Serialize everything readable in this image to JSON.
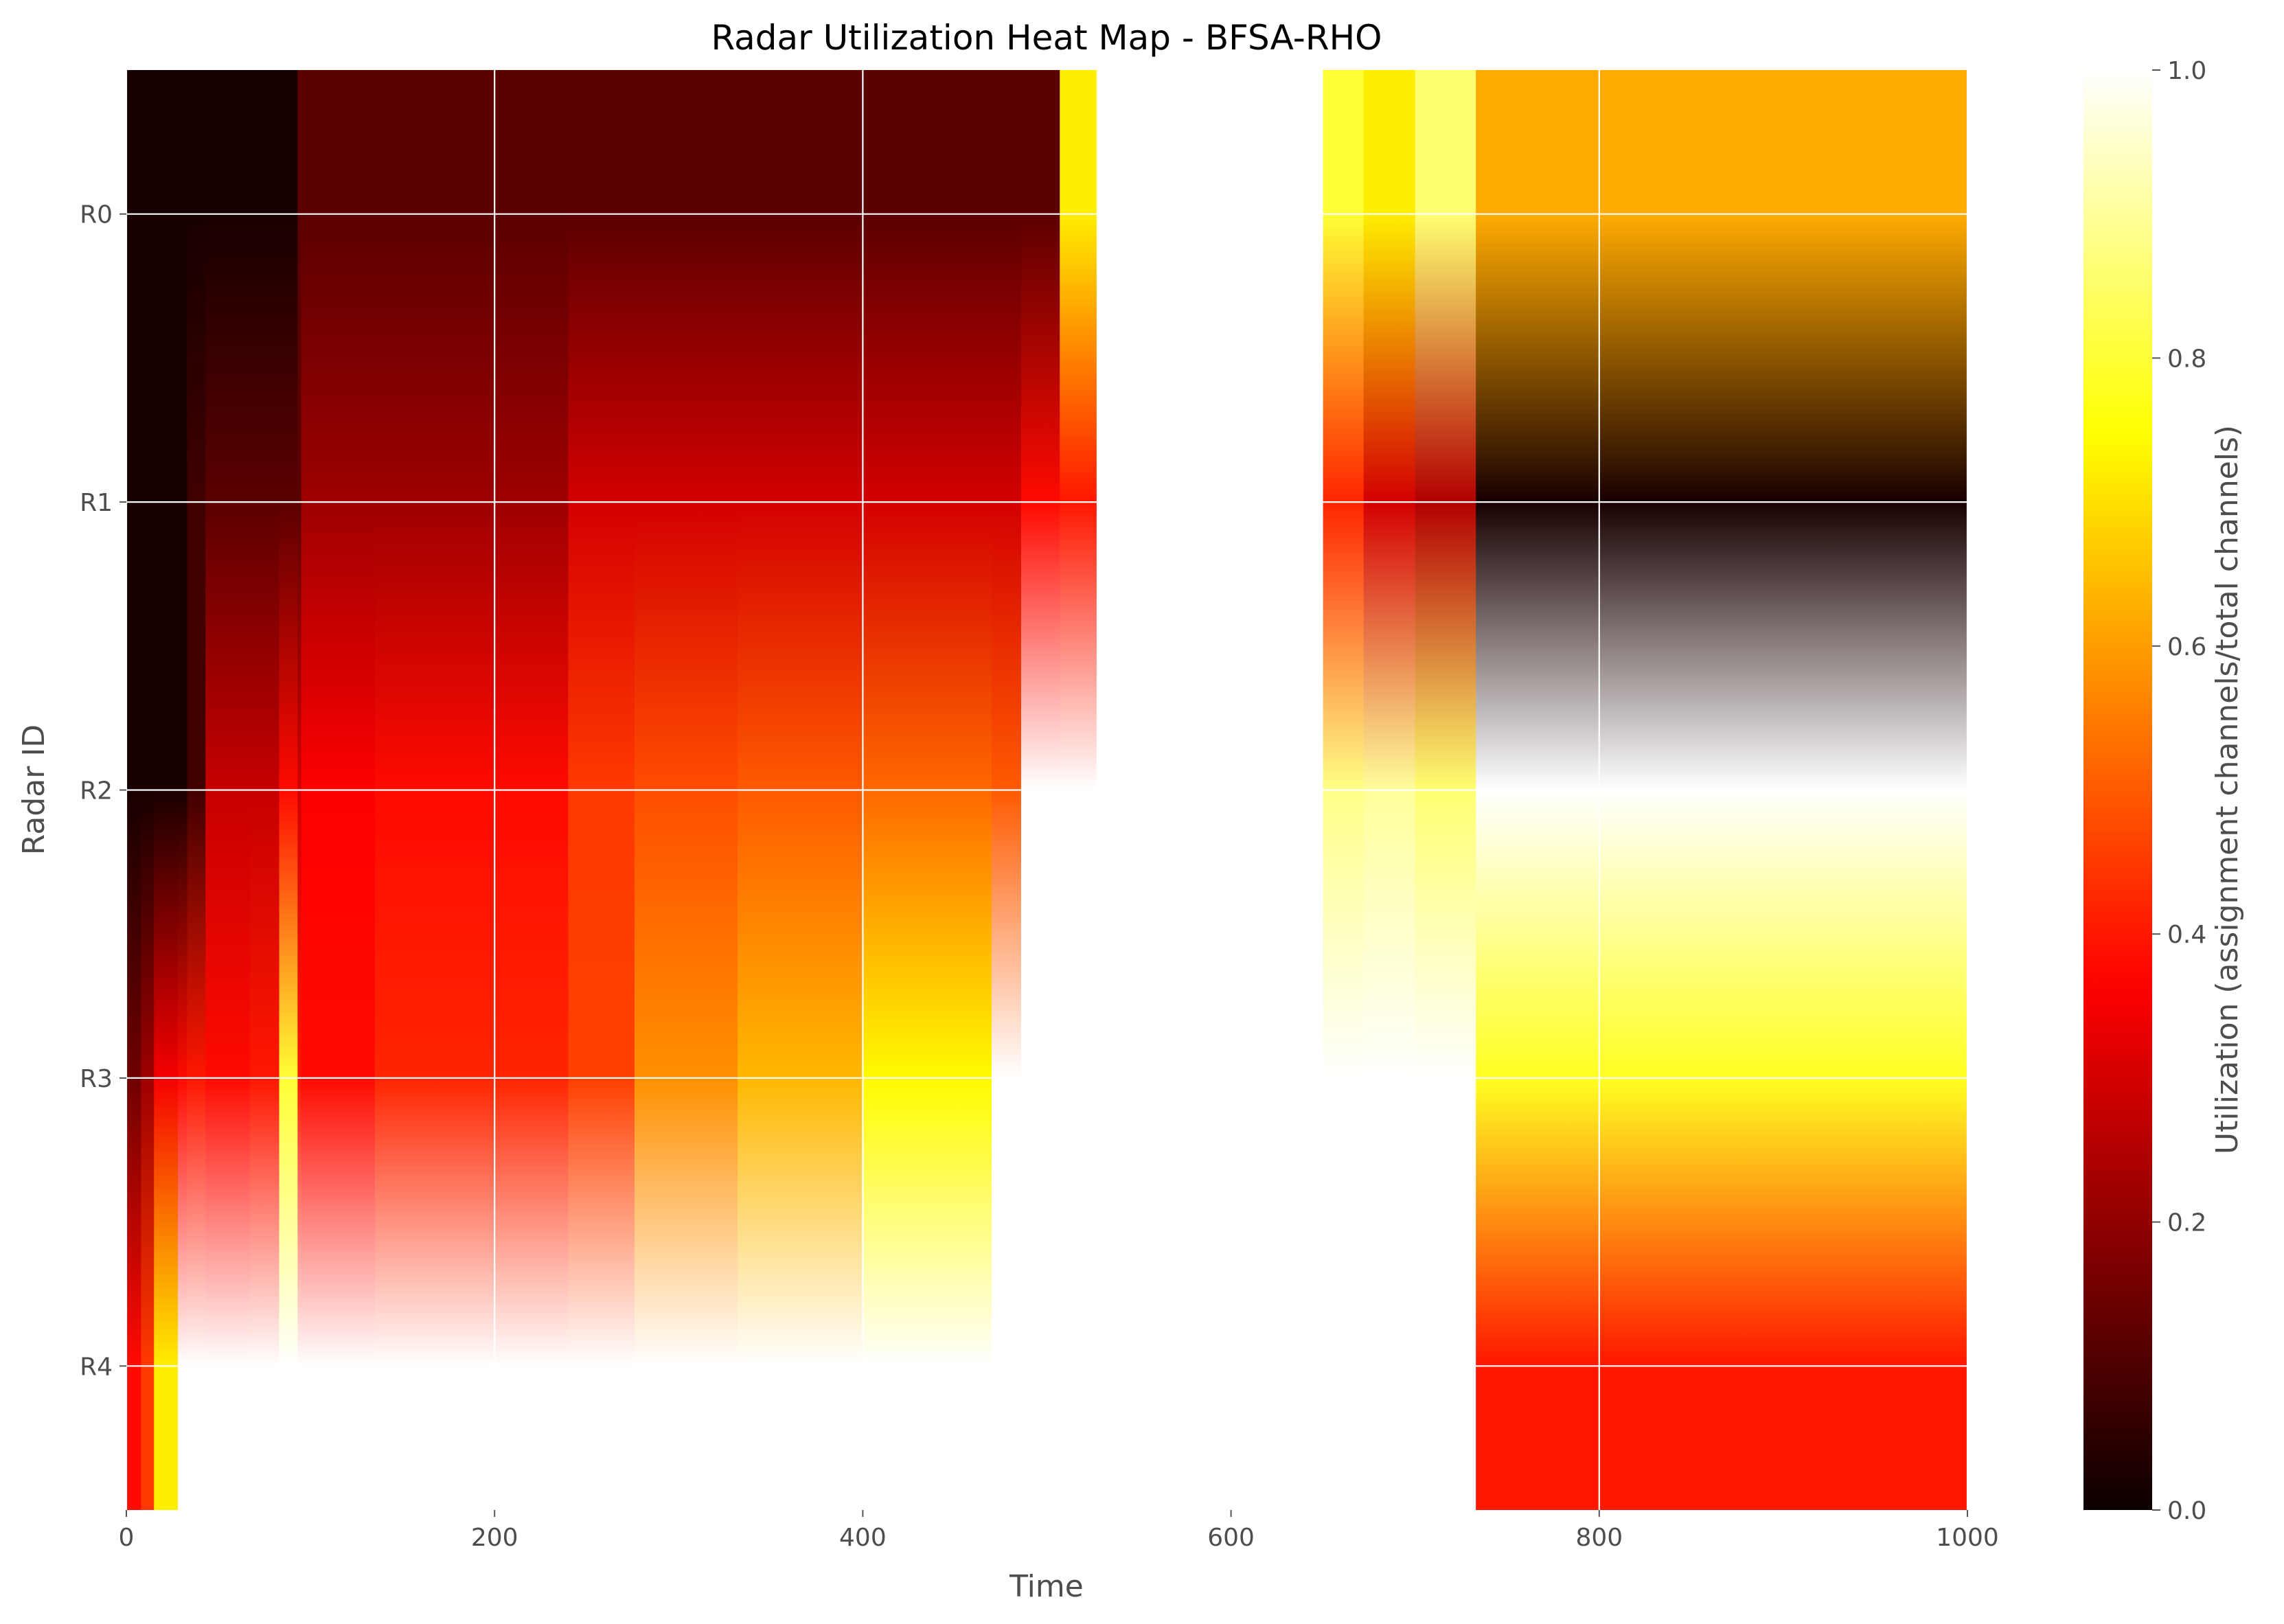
{
  "chart_data": {
    "type": "heatmap",
    "title": "Radar Utilization Heat Map - BFSA-RHO",
    "xlabel": "Time",
    "ylabel": "Radar ID",
    "colorbar_label": "Utilization (assignment channels/total channels)",
    "colormap": "hot",
    "interpolation": "bilinear",
    "xlim": [
      0,
      1000
    ],
    "clim": [
      0,
      1
    ],
    "x_ticks": [
      0,
      200,
      400,
      600,
      800,
      1000
    ],
    "x_tick_labels": [
      "0",
      "200",
      "400",
      "600",
      "800",
      "1000"
    ],
    "colorbar_ticks": [
      0,
      0.2,
      0.4,
      0.6,
      0.8,
      1.0
    ],
    "colorbar_tick_labels": [
      "0.0",
      "0.2",
      "0.4",
      "0.6",
      "0.8",
      "1.0"
    ],
    "rows": [
      "R0",
      "R1",
      "R2",
      "R3",
      "R4"
    ],
    "grid": true,
    "segments": [
      {
        "start": 0,
        "end": 8,
        "values": [
          0.02,
          0.02,
          0.02,
          0.15,
          0.38
        ]
      },
      {
        "start": 8,
        "end": 15,
        "values": [
          0.02,
          0.02,
          0.02,
          0.22,
          0.45
        ]
      },
      {
        "start": 15,
        "end": 28,
        "values": [
          0.02,
          0.02,
          0.02,
          0.35,
          0.72
        ]
      },
      {
        "start": 28,
        "end": 33,
        "values": [
          0.02,
          0.02,
          0.02,
          0.38,
          1.0
        ]
      },
      {
        "start": 33,
        "end": 43,
        "values": [
          0.02,
          0.08,
          0.08,
          0.4,
          1.0
        ]
      },
      {
        "start": 43,
        "end": 67,
        "values": [
          0.02,
          0.12,
          0.28,
          0.38,
          1.0
        ]
      },
      {
        "start": 67,
        "end": 83,
        "values": [
          0.02,
          0.12,
          0.28,
          0.4,
          1.0
        ]
      },
      {
        "start": 83,
        "end": 93,
        "values": [
          0.02,
          0.12,
          0.38,
          0.8,
          1.0
        ]
      },
      {
        "start": 93,
        "end": 95,
        "values": [
          0.12,
          0.12,
          0.3,
          0.4,
          1.0
        ]
      },
      {
        "start": 95,
        "end": 135,
        "values": [
          0.12,
          0.22,
          0.36,
          0.38,
          1.0
        ]
      },
      {
        "start": 135,
        "end": 240,
        "values": [
          0.12,
          0.22,
          0.38,
          0.42,
          1.0
        ]
      },
      {
        "start": 240,
        "end": 276,
        "values": [
          0.12,
          0.3,
          0.45,
          0.46,
          1.0
        ]
      },
      {
        "start": 276,
        "end": 332,
        "values": [
          0.12,
          0.3,
          0.48,
          0.58,
          1.0
        ]
      },
      {
        "start": 332,
        "end": 400,
        "values": [
          0.12,
          0.3,
          0.5,
          0.64,
          1.0
        ]
      },
      {
        "start": 400,
        "end": 470,
        "values": [
          0.12,
          0.3,
          0.52,
          0.74,
          1.0
        ]
      },
      {
        "start": 470,
        "end": 486,
        "values": [
          0.12,
          0.3,
          0.5,
          1.0,
          1.0
        ]
      },
      {
        "start": 486,
        "end": 507,
        "values": [
          0.12,
          0.38,
          1.0,
          1.0,
          1.0
        ]
      },
      {
        "start": 507,
        "end": 527,
        "values": [
          0.72,
          0.4,
          1.0,
          1.0,
          1.0
        ]
      },
      {
        "start": 527,
        "end": 650,
        "values": [
          1.0,
          1.0,
          1.0,
          1.0,
          1.0
        ]
      },
      {
        "start": 650,
        "end": 672,
        "values": [
          0.8,
          0.42,
          0.88,
          1.0,
          1.0
        ]
      },
      {
        "start": 672,
        "end": 700,
        "values": [
          0.72,
          0.3,
          0.9,
          1.0,
          1.0
        ]
      },
      {
        "start": 700,
        "end": 733,
        "values": [
          0.86,
          0.25,
          0.86,
          1.0,
          1.0
        ]
      },
      {
        "start": 733,
        "end": 1000,
        "values": [
          0.62,
          0.02,
          1.0,
          0.78,
          0.4
        ]
      }
    ]
  }
}
